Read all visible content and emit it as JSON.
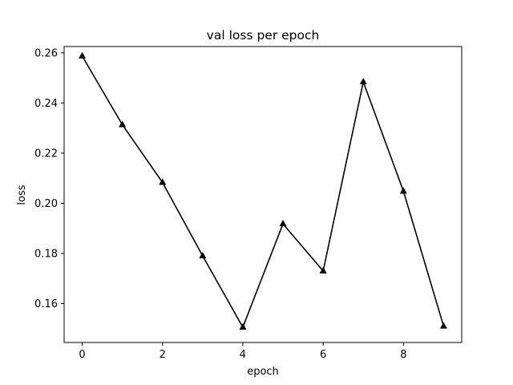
{
  "chart_data": {
    "type": "line",
    "title": "val loss per epoch",
    "xlabel": "epoch",
    "ylabel": "loss",
    "xlim": [
      -0.45,
      9.45
    ],
    "ylim": [
      0.1445,
      0.2625
    ],
    "xticks": [
      0,
      2,
      4,
      6,
      8
    ],
    "xtick_labels": [
      "0",
      "2",
      "4",
      "6",
      "8"
    ],
    "yticks": [
      0.16,
      0.18,
      0.2,
      0.22,
      0.24,
      0.26
    ],
    "ytick_labels": [
      "0.16",
      "0.18",
      "0.20",
      "0.22",
      "0.24",
      "0.26"
    ],
    "grid": false,
    "series": [
      {
        "color": "#000000",
        "marker": "triangle-up",
        "x": [
          0,
          1,
          2,
          3,
          4,
          5,
          6,
          7,
          8,
          9
        ],
        "values": [
          0.2587,
          0.2313,
          0.2083,
          0.179,
          0.1506,
          0.1918,
          0.173,
          0.2484,
          0.2048,
          0.151
        ]
      }
    ]
  }
}
